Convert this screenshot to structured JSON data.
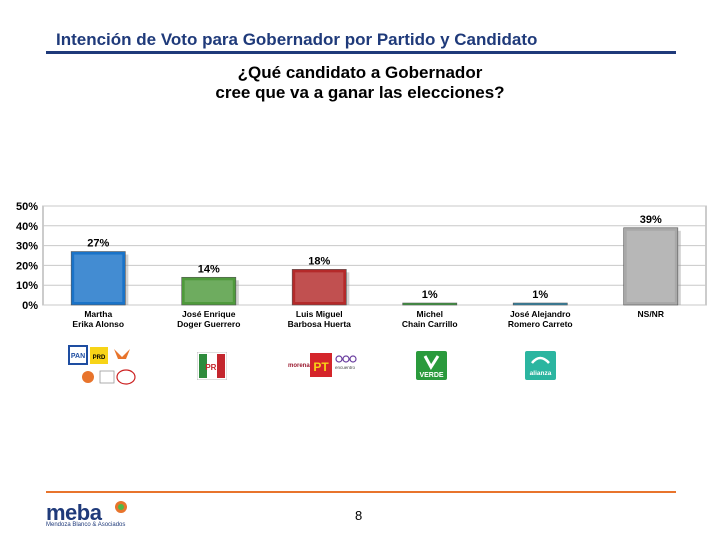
{
  "header": {
    "title": "Intención de Voto para Gobernador por Partido y Candidato",
    "question_line1": "¿Qué candidato a Gobernador",
    "question_line2": "cree que va a ganar las elecciones?"
  },
  "chart_data": {
    "type": "bar",
    "title": "",
    "xlabel": "",
    "ylabel": "",
    "ylim": [
      0,
      50
    ],
    "yticks": [
      0,
      10,
      20,
      30,
      40,
      50
    ],
    "ytick_labels": [
      "0%",
      "10%",
      "20%",
      "30%",
      "40%",
      "50%"
    ],
    "categories": [
      [
        "Martha",
        "Erika Alonso"
      ],
      [
        "José Enrique",
        "Doger Guerrero"
      ],
      [
        "Luis Miguel",
        "Barbosa Huerta"
      ],
      [
        "Michel",
        "Chain Carrillo"
      ],
      [
        "José Alejandro",
        "Romero Carreto"
      ],
      [
        "NS/NR"
      ]
    ],
    "values": [
      27,
      14,
      18,
      1,
      1,
      39
    ],
    "data_labels": [
      "27%",
      "14%",
      "18%",
      "1%",
      "1%",
      "39%"
    ],
    "colors": [
      "#1a73c8",
      "#4f9a3c",
      "#b42a2a",
      "#3a9a3c",
      "#2f86a8",
      "#a8a8a8"
    ],
    "grid": true,
    "legend": "none"
  },
  "logos": {
    "pan": "PAN",
    "prd": "PRD",
    "pri": "PRI",
    "morena": "morena",
    "pt": "PT",
    "encuentro": "encuentro",
    "verde": "VERDE",
    "alianza": "alianza"
  },
  "footer": {
    "brand": "meba",
    "brand_sub": "Mendoza Blanco & Asociados",
    "page_number": "8",
    "accent": "#e8742c"
  }
}
